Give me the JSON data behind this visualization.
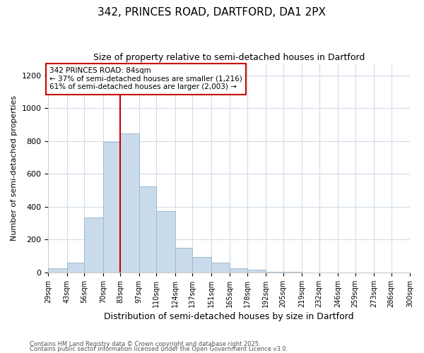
{
  "title1": "342, PRINCES ROAD, DARTFORD, DA1 2PX",
  "title2": "Size of property relative to semi-detached houses in Dartford",
  "xlabel": "Distribution of semi-detached houses by size in Dartford",
  "ylabel": "Number of semi-detached properties",
  "bin_labels": [
    "29sqm",
    "43sqm",
    "56sqm",
    "70sqm",
    "83sqm",
    "97sqm",
    "110sqm",
    "124sqm",
    "137sqm",
    "151sqm",
    "165sqm",
    "178sqm",
    "192sqm",
    "205sqm",
    "219sqm",
    "232sqm",
    "246sqm",
    "259sqm",
    "273sqm",
    "286sqm",
    "300sqm"
  ],
  "bin_edges": [
    29,
    43,
    56,
    70,
    83,
    97,
    110,
    124,
    137,
    151,
    165,
    178,
    192,
    205,
    219,
    232,
    246,
    259,
    273,
    286,
    300
  ],
  "counts": [
    25,
    60,
    335,
    795,
    845,
    525,
    375,
    150,
    95,
    60,
    25,
    15,
    5,
    2,
    1,
    0,
    0,
    0,
    0,
    0
  ],
  "bar_color": "#c9daea",
  "bar_edge_color": "#a0bcd0",
  "vline_x": 83,
  "vline_color": "#cc0000",
  "annotation_text": "342 PRINCES ROAD: 84sqm\n← 37% of semi-detached houses are smaller (1,216)\n61% of semi-detached houses are larger (2,003) →",
  "annotation_box_color": "white",
  "annotation_box_edge": "#cc0000",
  "ylim": [
    0,
    1270
  ],
  "yticks": [
    0,
    200,
    400,
    600,
    800,
    1000,
    1200
  ],
  "footer1": "Contains HM Land Registry data © Crown copyright and database right 2025.",
  "footer2": "Contains public sector information licensed under the Open Government Licence v3.0.",
  "bg_color": "#ffffff",
  "plot_bg_color": "#ffffff",
  "grid_color": "#d0dce8"
}
